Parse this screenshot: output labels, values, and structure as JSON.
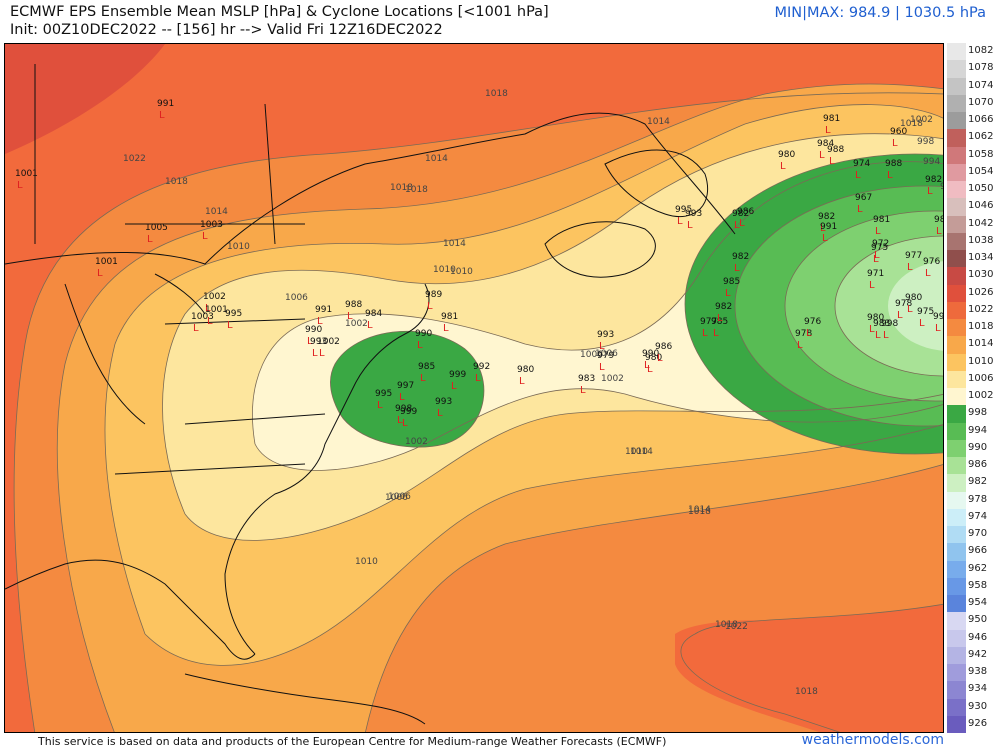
{
  "header": {
    "title_line1": "ECMWF EPS Ensemble Mean MSLP [hPa] & Cyclone Locations [<1001 hPa]",
    "title_line2": "Init: 00Z10DEC2022 -- [156] hr --> Valid Fri 12Z16DEC2022",
    "minmax": "MIN|MAX: 984.9 | 1030.5 hPa"
  },
  "footer": {
    "note": "This service is based on data and products of the European Centre for Medium-range Weather Forecasts (ECMWF)",
    "site": "weathermodels.com"
  },
  "colorbar": {
    "labels": [
      "1082",
      "1078",
      "1074",
      "1070",
      "1066",
      "1062",
      "1058",
      "1054",
      "1050",
      "1046",
      "1042",
      "1038",
      "1034",
      "1030",
      "1026",
      "1022",
      "1018",
      "1014",
      "1010",
      "1006",
      "1002",
      "998",
      "994",
      "990",
      "986",
      "982",
      "978",
      "974",
      "970",
      "966",
      "962",
      "958",
      "954",
      "950",
      "946",
      "942",
      "938",
      "934",
      "930",
      "926"
    ],
    "colors": [
      "#e8e8e8",
      "#d6d6d6",
      "#c4c4c4",
      "#b0b0b0",
      "#9c9c9c",
      "#c0605c",
      "#d0787a",
      "#e09aa0",
      "#f0bcc2",
      "#d8bfbc",
      "#c49c98",
      "#a87470",
      "#904f4c",
      "#c84a44",
      "#e0503c",
      "#ee6a3c",
      "#f48a40",
      "#f8a84a",
      "#fcc460",
      "#fde69e",
      "#fff6d0",
      "#3aa844",
      "#58bc54",
      "#7ed070",
      "#a8e296",
      "#cdf0c2",
      "#e6f8f0",
      "#cceef8",
      "#b0dcf4",
      "#90c4ee",
      "#78acec",
      "#6898e6",
      "#5a84dc",
      "#d8d8f2",
      "#c8c8ec",
      "#b4b4e4",
      "#a09cdc",
      "#8c86d2",
      "#7a70c8",
      "#6a5cbe"
    ]
  },
  "map": {
    "contour_labels": [
      "1022",
      "1018",
      "1014",
      "1010",
      "1006",
      "1002",
      "1018",
      "1014",
      "1010",
      "1006",
      "1002",
      "1006",
      "1010",
      "1014",
      "1018",
      "1022",
      "1018",
      "1014",
      "1018",
      "1010",
      "1014",
      "1018",
      "1002",
      "998",
      "994",
      "990",
      "1018",
      "1006",
      "1002",
      "1006",
      "1010",
      "1014",
      "1018"
    ],
    "low_values": [
      "991",
      "1001",
      "1001",
      "1005",
      "1003",
      "995",
      "1002",
      "1003",
      "1001",
      "991",
      "990",
      "993",
      "1002",
      "988",
      "984",
      "990",
      "981",
      "989",
      "985",
      "992",
      "980",
      "983",
      "995",
      "997",
      "999",
      "998",
      "999",
      "993",
      "982",
      "985",
      "990",
      "980",
      "979",
      "993",
      "986",
      "995",
      "993",
      "982",
      "986",
      "981",
      "984",
      "988",
      "980",
      "960",
      "974",
      "988",
      "982",
      "967",
      "982",
      "991",
      "981",
      "972",
      "975",
      "971",
      "977",
      "978",
      "976",
      "981",
      "980",
      "975",
      "993",
      "985",
      "982",
      "977",
      "978",
      "976",
      "980",
      "983",
      "998"
    ]
  }
}
